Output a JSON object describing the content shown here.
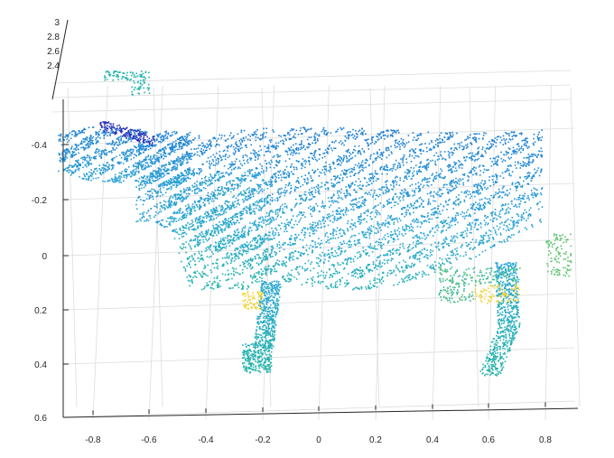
{
  "chart_data": {
    "type": "scatter",
    "title": "",
    "xlabel": "",
    "ylabel": "",
    "zlabel": "",
    "grid": true,
    "colormap": "parula",
    "x_ticks": [
      "-0.8",
      "-0.6",
      "-0.4",
      "-0.2",
      "0",
      "0.2",
      "0.4",
      "0.6",
      "0.8"
    ],
    "y_ticks": [
      "-0.4",
      "-0.2",
      "0",
      "0.2",
      "0.4",
      "0.6"
    ],
    "z_ticks": [
      "2.4",
      "2.6",
      "2.8",
      "3"
    ],
    "xlim": [
      -0.9,
      0.9
    ],
    "ylim": [
      -0.4,
      0.6
    ],
    "zlim": [
      2.3,
      3.0
    ],
    "colors": {
      "deep_blue": "#2a2fb8",
      "blue": "#1f7fd4",
      "light_blue": "#2aa6d6",
      "teal": "#22b3a8",
      "green": "#5cc26c",
      "yellow": "#f2d22e"
    },
    "subject": "cow point cloud"
  }
}
